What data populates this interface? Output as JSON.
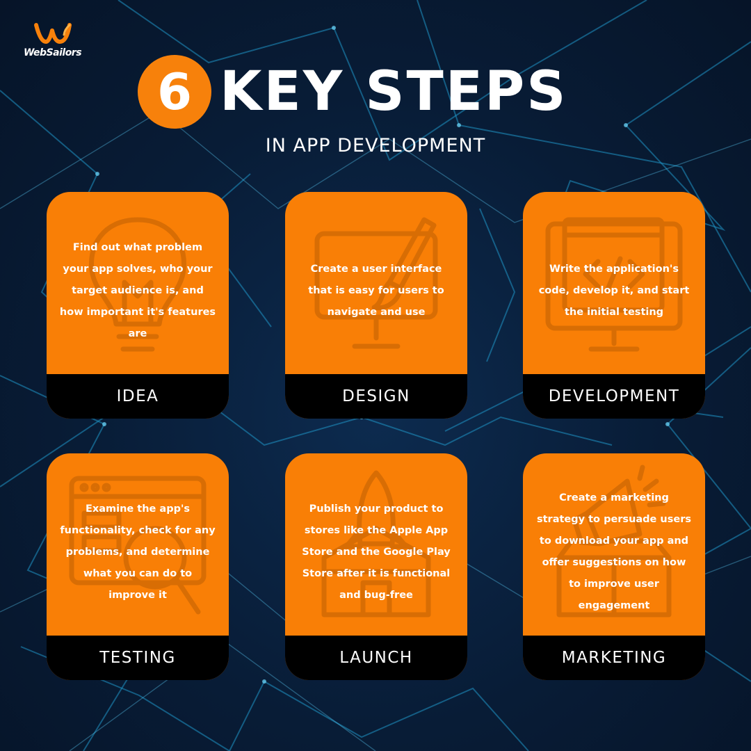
{
  "brand": {
    "name": "WebSailors",
    "logo_icon": "ws-logo-icon",
    "accent_color": "#f7810b"
  },
  "header": {
    "number": "6",
    "title": "KEY STEPS",
    "subtitle": "IN APP DEVELOPMENT"
  },
  "steps": [
    {
      "label": "IDEA",
      "icon": "lightbulb-icon",
      "text": "Find out what problem your app solves, who your target audience is, and how important it's features are"
    },
    {
      "label": "DESIGN",
      "icon": "design-brush-icon",
      "text": "Create a user interface that is easy for users to navigate and use"
    },
    {
      "label": "DEVELOPMENT",
      "icon": "code-monitor-icon",
      "text": "Write the application's code, develop it, and start the initial testing"
    },
    {
      "label": "TESTING",
      "icon": "testing-magnifier-icon",
      "text": "Examine the app's functionality, check for any problems, and determine what you can do to improve it"
    },
    {
      "label": "LAUNCH",
      "icon": "rocket-icon",
      "text": "Publish your product to stores like the Apple App Store and the Google Play Store after it is functional and bug-free"
    },
    {
      "label": "MARKETING",
      "icon": "megaphone-icon",
      "text": "Create a marketing strategy to persuade users to download your app and offer suggestions on how to improve user engagement"
    }
  ]
}
